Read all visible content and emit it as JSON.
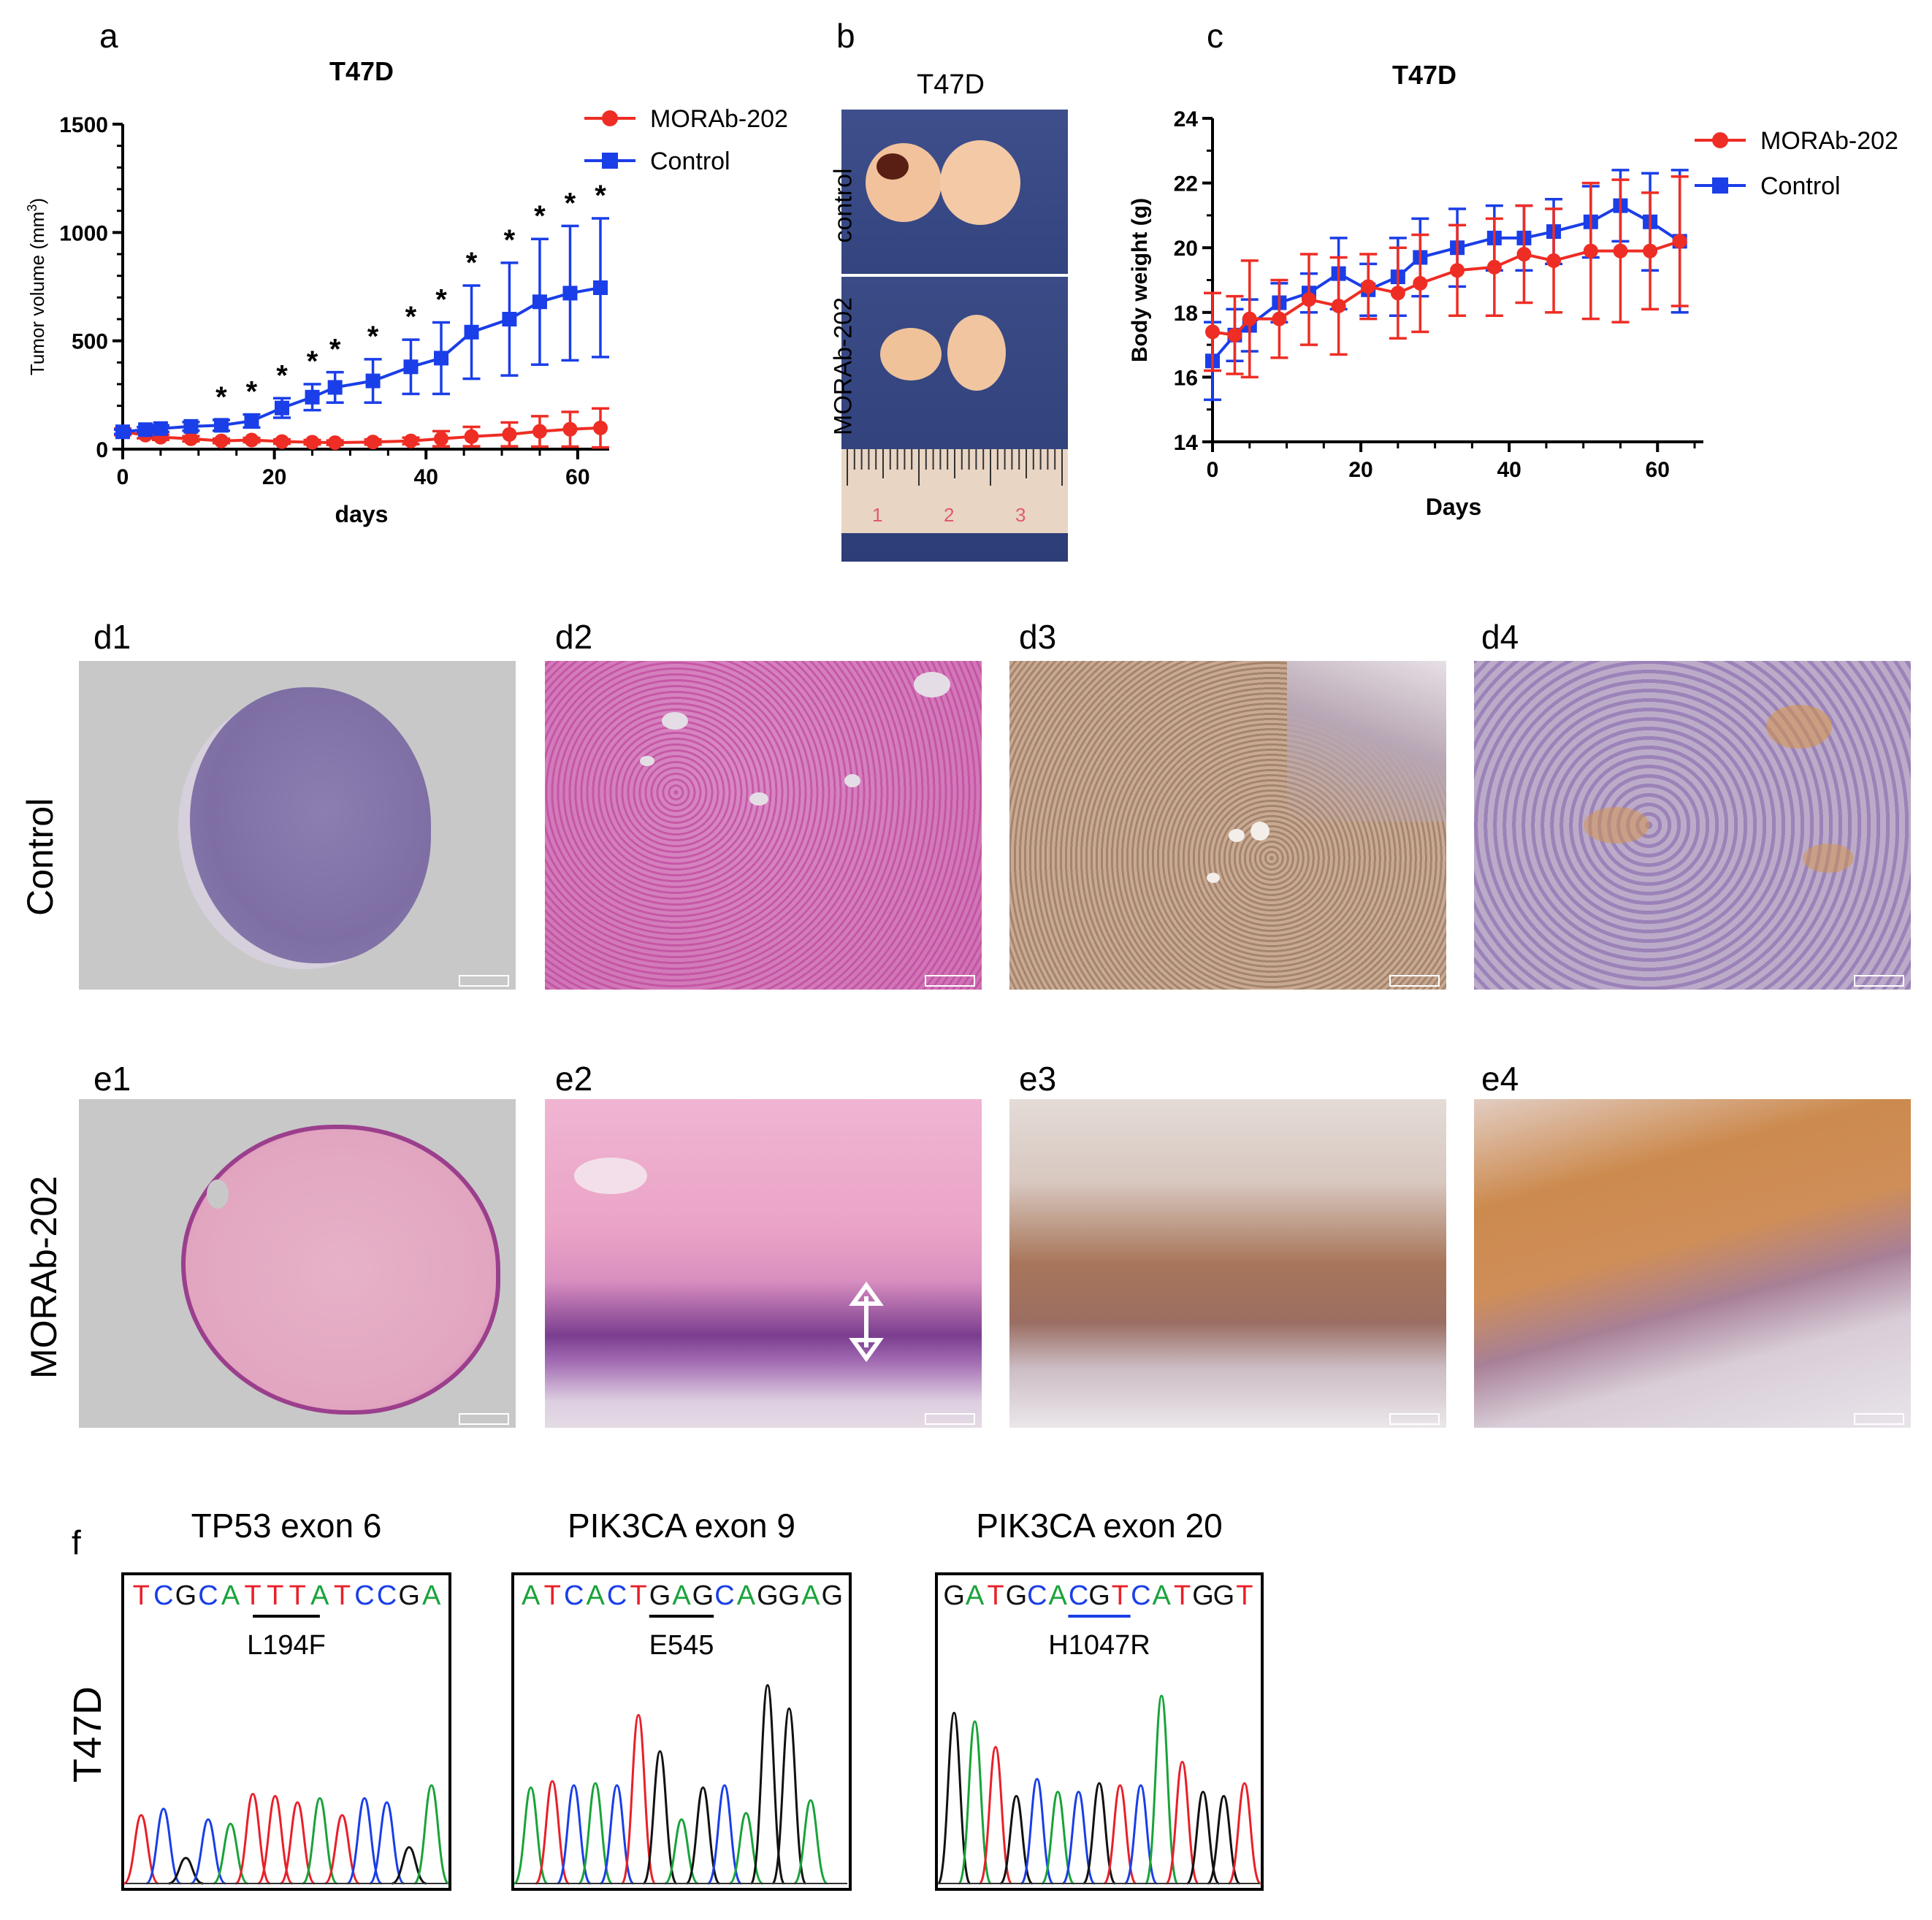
{
  "panels": {
    "a": "a",
    "b": "b",
    "c": "c",
    "d1": "d1",
    "d2": "d2",
    "d3": "d3",
    "d4": "d4",
    "e1": "e1",
    "e2": "e2",
    "e3": "e3",
    "e4": "e4",
    "f": "f"
  },
  "row_labels": {
    "control": "Control",
    "morab": "MORAb-202",
    "t47d": "T47D"
  },
  "photo_b": {
    "title": "T47D",
    "label_top": "control",
    "label_bottom": "MORAb-202",
    "ruler_marks": [
      "1",
      "2",
      "3"
    ]
  },
  "chart_data": [
    {
      "id": "a",
      "type": "line",
      "title": "T47D",
      "xlabel": "days",
      "ylabel": "Tumor volume (mm3)",
      "ylabel_main": "Tumor volume (mm",
      "ylabel_sup": "3",
      "ylabel_end": ")",
      "xlim": [
        0,
        63
      ],
      "ylim": [
        0,
        1500
      ],
      "xticks": [
        "0",
        "20",
        "40",
        "60"
      ],
      "yticks": [
        "0",
        "500",
        "1000",
        "1500"
      ],
      "legend": [
        "MORAb-202",
        "Control"
      ],
      "legend_position": "top-right",
      "x": [
        0,
        3,
        5,
        9,
        13,
        17,
        21,
        25,
        28,
        33,
        38,
        42,
        46,
        51,
        55,
        59,
        63
      ],
      "series": [
        {
          "name": "MORAb-202",
          "color": "#ee2d24",
          "marker": "circle",
          "values": [
            80,
            65,
            55,
            48,
            38,
            42,
            35,
            32,
            30,
            33,
            38,
            48,
            58,
            68,
            82,
            92,
            98
          ],
          "errors": [
            15,
            15,
            12,
            12,
            10,
            10,
            10,
            10,
            10,
            12,
            15,
            35,
            45,
            55,
            70,
            80,
            90
          ]
        },
        {
          "name": "Control",
          "color": "#1a3ee8",
          "marker": "square",
          "values": [
            80,
            90,
            95,
            105,
            110,
            130,
            190,
            240,
            285,
            315,
            380,
            420,
            540,
            600,
            680,
            720,
            745
          ],
          "errors": [
            10,
            12,
            15,
            20,
            25,
            30,
            45,
            60,
            70,
            100,
            125,
            165,
            215,
            260,
            290,
            310,
            320
          ]
        }
      ],
      "significance": "*",
      "significant_x": [
        13,
        17,
        21,
        25,
        28,
        33,
        38,
        42,
        46,
        51,
        55,
        59,
        63
      ]
    },
    {
      "id": "c",
      "type": "line",
      "title": "T47D",
      "xlabel": "Days",
      "ylabel": "Body weight (g)",
      "xlim": [
        0,
        65
      ],
      "ylim": [
        14,
        24
      ],
      "xticks": [
        "0",
        "20",
        "40",
        "60"
      ],
      "yticks": [
        "14",
        "16",
        "18",
        "20",
        "22",
        "24"
      ],
      "legend": [
        "MORAb-202",
        "Control"
      ],
      "legend_position": "top-right",
      "x": [
        0,
        3,
        5,
        9,
        13,
        17,
        21,
        25,
        28,
        33,
        38,
        42,
        46,
        51,
        55,
        59,
        63
      ],
      "series": [
        {
          "name": "MORAb-202",
          "color": "#ee2d24",
          "marker": "circle",
          "values": [
            17.4,
            17.3,
            17.8,
            17.8,
            18.4,
            18.2,
            18.8,
            18.6,
            18.9,
            19.3,
            19.4,
            19.8,
            19.6,
            19.9,
            19.9,
            19.9,
            20.2
          ],
          "errors": [
            1.2,
            1.2,
            1.8,
            1.2,
            1.4,
            1.5,
            1.0,
            1.4,
            1.5,
            1.4,
            1.5,
            1.5,
            1.6,
            2.1,
            2.2,
            1.8,
            2.0
          ]
        },
        {
          "name": "Control",
          "color": "#1a3ee8",
          "marker": "square",
          "values": [
            16.5,
            17.3,
            17.6,
            18.3,
            18.6,
            19.2,
            18.7,
            19.1,
            19.7,
            20.0,
            20.3,
            20.3,
            20.5,
            20.8,
            21.3,
            20.8,
            20.2
          ],
          "errors": [
            1.2,
            0.8,
            0.8,
            0.6,
            0.6,
            1.1,
            0.8,
            1.2,
            1.2,
            1.2,
            1.0,
            1.0,
            1.0,
            1.1,
            1.1,
            1.5,
            2.2
          ]
        }
      ]
    }
  ],
  "sequencing": [
    {
      "title": "TP53 exon 6",
      "sequence": "TCGCATTTATCCGA",
      "mutation": "L194F",
      "underline_color": "#000000"
    },
    {
      "title": "PIK3CA exon 9",
      "sequence": "ATCACTGAGCAGGAG",
      "mutation": "E545",
      "underline_color": "#000000"
    },
    {
      "title": "PIK3CA exon 20",
      "sequence": "GATGCACGTCATGGT",
      "mutation": "H1047R",
      "underline_color": "#1a3ee8"
    }
  ],
  "colors": {
    "base_A": "#19a33a",
    "base_C": "#1a3ee8",
    "base_G": "#111111",
    "base_T": "#e8202a"
  }
}
